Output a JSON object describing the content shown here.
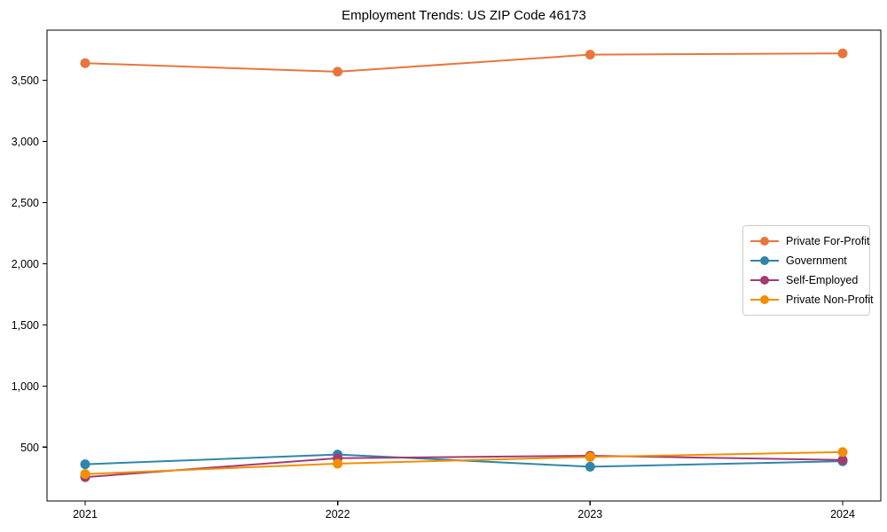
{
  "chart_data": {
    "type": "line",
    "title": "Employment Trends: US ZIP Code 46173",
    "xlabel": "",
    "ylabel": "",
    "categories": [
      "2021",
      "2022",
      "2023",
      "2024"
    ],
    "series": [
      {
        "name": "Private For-Profit",
        "color": "#E8763C",
        "values": [
          3640,
          3570,
          3710,
          3720
        ]
      },
      {
        "name": "Government",
        "color": "#2E86AB",
        "values": [
          360,
          440,
          340,
          385
        ]
      },
      {
        "name": "Self-Employed",
        "color": "#A23B72",
        "values": [
          255,
          410,
          430,
          395
        ]
      },
      {
        "name": "Private Non-Profit",
        "color": "#F18F01",
        "values": [
          280,
          365,
          420,
          460
        ]
      }
    ],
    "ylim": [
      60,
      3910
    ],
    "yticks": [
      500,
      1000,
      1500,
      2000,
      2500,
      3000,
      3500
    ],
    "ytick_labels": [
      "500",
      "1,000",
      "1,500",
      "2,000",
      "2,500",
      "3,000",
      "3,500"
    ],
    "grid": false,
    "legend_position": "center-right",
    "marker": "circle",
    "axis_color": "#000000",
    "tick_label_color": "#000000"
  }
}
